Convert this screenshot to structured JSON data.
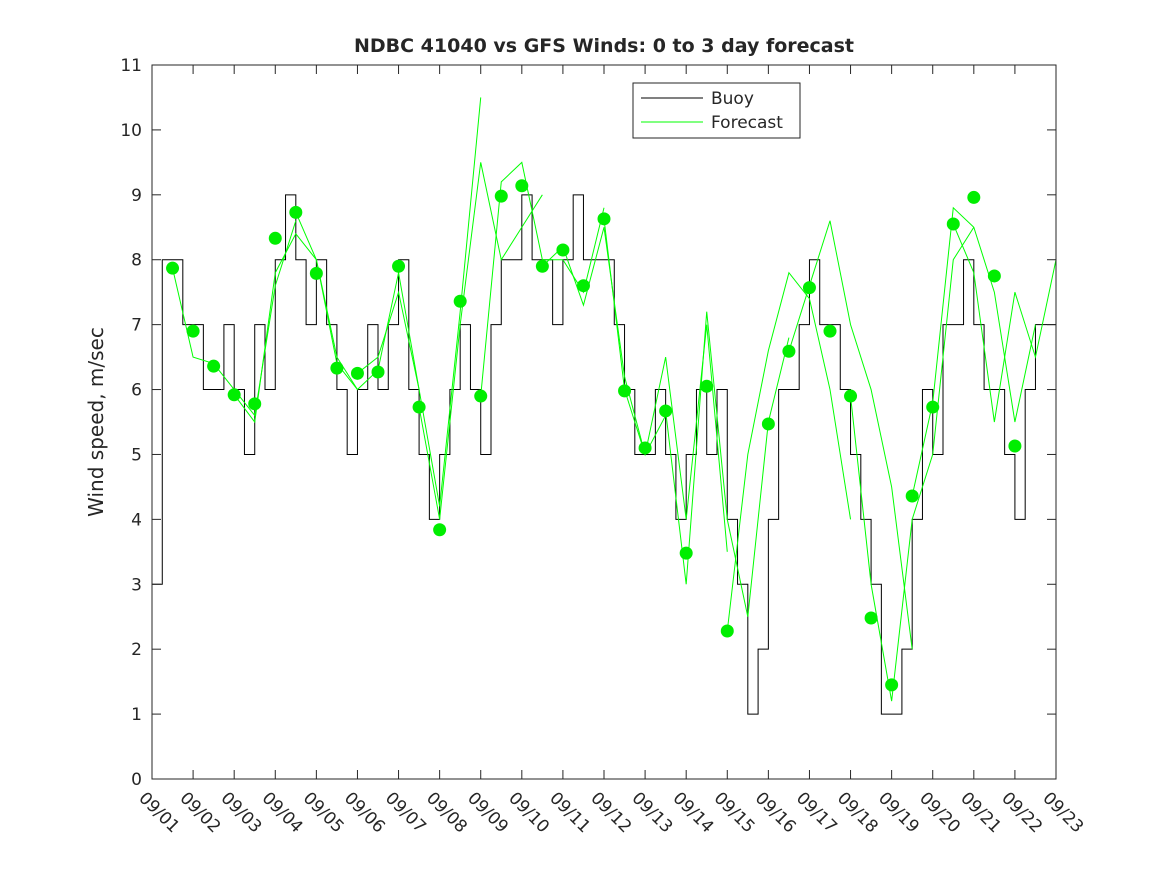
{
  "chart_data": {
    "type": "line",
    "title": "NDBC 41040 vs GFS Winds: 0 to 3 day forecast",
    "xlabel": "",
    "ylabel": "Wind speed, m/sec",
    "xlim": [
      0,
      22
    ],
    "ylim": [
      0,
      11
    ],
    "yticks": [
      "0",
      "1",
      "2",
      "3",
      "4",
      "5",
      "6",
      "7",
      "8",
      "9",
      "10",
      "11"
    ],
    "xticks": [
      "09/01",
      "09/02",
      "09/03",
      "09/04",
      "09/05",
      "09/06",
      "09/07",
      "09/08",
      "09/09",
      "09/10",
      "09/11",
      "09/12",
      "09/13",
      "09/14",
      "09/15",
      "09/16",
      "09/17",
      "09/18",
      "09/19",
      "09/20",
      "09/21",
      "09/22",
      "09/23"
    ],
    "grid": false,
    "legend": {
      "placement": "top-center",
      "entries": [
        "Buoy",
        "Forecast"
      ]
    },
    "colors": {
      "buoy": "#000000",
      "forecast": "#00ff00",
      "dots": "#00ee00"
    },
    "buoy": {
      "name": "Buoy",
      "step_days": 0.25,
      "values": [
        3,
        8,
        8,
        7,
        7,
        6,
        6,
        7,
        6,
        5,
        7,
        6,
        8,
        9,
        8,
        7,
        8,
        7,
        6,
        5,
        6,
        7,
        6,
        7,
        8,
        6,
        5,
        4,
        5,
        6,
        7,
        6,
        5,
        7,
        8,
        8,
        9,
        8,
        8,
        7,
        8,
        9,
        8,
        8,
        8,
        7,
        6,
        5,
        5,
        6,
        5,
        4,
        5,
        6,
        5,
        6,
        4,
        3,
        1,
        2,
        4,
        6,
        6,
        7,
        8,
        7,
        7,
        6,
        5,
        4,
        3,
        1,
        1,
        2,
        4,
        6,
        5,
        7,
        7,
        8,
        7,
        6,
        6,
        5,
        4,
        6,
        7,
        7,
        7
      ]
    },
    "forecast": {
      "name": "Forecast",
      "step_days": 0.5,
      "runs": [
        {
          "start": 0.5,
          "values": [
            7.87,
            6.5,
            6.4,
            6.0,
            5.6,
            7.6,
            8.6
          ]
        },
        {
          "start": 2.0,
          "values": [
            5.92,
            5.5,
            7.8,
            8.4,
            8.0,
            6.4,
            6.0
          ]
        },
        {
          "start": 3.5,
          "values": [
            8.73,
            8.0,
            6.5,
            6.0,
            6.3,
            7.8,
            6.0
          ]
        },
        {
          "start": 5.0,
          "values": [
            6.25,
            6.5,
            7.5,
            6.0,
            4.2,
            7.2,
            10.5
          ]
        },
        {
          "start": 6.5,
          "values": [
            5.73,
            4.0,
            7.0,
            9.5,
            8.0,
            8.5,
            9.0
          ]
        },
        {
          "start": 8.0,
          "values": [
            5.9,
            9.2,
            9.5,
            8.0,
            8.0,
            7.5,
            8.8
          ]
        },
        {
          "start": 9.5,
          "values": [
            7.9,
            8.2,
            7.3,
            8.5,
            6.2,
            5.0,
            5.6
          ]
        },
        {
          "start": 11.0,
          "values": [
            8.63,
            6.0,
            5.0,
            6.5,
            4.0,
            7.0,
            3.5
          ]
        },
        {
          "start": 12.5,
          "values": [
            5.67,
            3.0,
            7.2,
            4.0,
            2.5,
            5.5,
            6.8
          ]
        },
        {
          "start": 14.0,
          "values": [
            2.28,
            5.0,
            6.6,
            7.8,
            7.4,
            6.0,
            4.0
          ]
        },
        {
          "start": 15.5,
          "values": [
            6.59,
            7.6,
            8.6,
            7.0,
            6.0,
            4.5,
            2.0
          ]
        },
        {
          "start": 17.0,
          "values": [
            5.9,
            3.0,
            1.2,
            4.0,
            5.0,
            8.0,
            8.5
          ]
        },
        {
          "start": 18.5,
          "values": [
            4.36,
            5.8,
            8.8,
            8.5,
            7.5,
            5.5,
            7.0
          ]
        },
        {
          "start": 19.5,
          "values": [
            8.55,
            7.8,
            5.5,
            7.5,
            6.5,
            8.0
          ]
        }
      ],
      "analysis_points": [
        [
          0.5,
          7.87
        ],
        [
          1,
          6.9
        ],
        [
          1.5,
          6.36
        ],
        [
          2,
          5.92
        ],
        [
          2.5,
          5.78
        ],
        [
          3,
          8.33
        ],
        [
          3.5,
          8.73
        ],
        [
          4,
          7.79
        ],
        [
          4.5,
          6.33
        ],
        [
          5,
          6.25
        ],
        [
          5.5,
          6.27
        ],
        [
          6,
          7.9
        ],
        [
          6.5,
          5.73
        ],
        [
          7,
          3.84
        ],
        [
          7.5,
          7.36
        ],
        [
          8,
          5.9
        ],
        [
          8.5,
          8.98
        ],
        [
          9,
          9.14
        ],
        [
          9.5,
          7.9
        ],
        [
          10,
          8.15
        ],
        [
          10.5,
          7.6
        ],
        [
          11,
          8.63
        ],
        [
          11.5,
          5.98
        ],
        [
          12,
          5.1
        ],
        [
          12.5,
          5.67
        ],
        [
          13,
          3.48
        ],
        [
          13.5,
          6.05
        ],
        [
          14,
          2.28
        ],
        [
          15,
          5.47
        ],
        [
          15.5,
          6.59
        ],
        [
          16,
          7.57
        ],
        [
          16.5,
          6.9
        ],
        [
          17,
          5.9
        ],
        [
          17.5,
          2.48
        ],
        [
          18,
          1.45
        ],
        [
          18.5,
          4.36
        ],
        [
          19,
          5.73
        ],
        [
          19.5,
          8.55
        ],
        [
          20,
          8.96
        ],
        [
          20.5,
          7.75
        ],
        [
          21,
          5.13
        ]
      ]
    }
  }
}
